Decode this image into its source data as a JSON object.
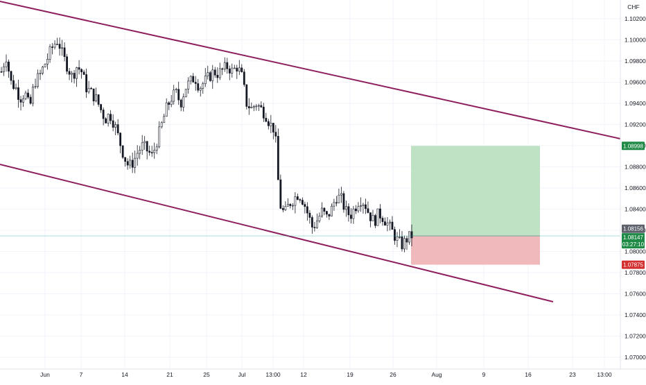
{
  "currency_label": "CHF",
  "colors": {
    "up": "#26a69a",
    "down": "#131722",
    "candle_body_down": "#131722",
    "candle_body_up": "#ffffff",
    "channel": "#8e1f5d",
    "target_zone": "#b7dfbc",
    "stop_zone": "#eeb3b5",
    "target_badge": "#1e8a45",
    "stop_badge": "#d32f2f",
    "price_badge": "#1e8a45",
    "prev_badge": "#5d606b",
    "grid": "#f0f3fa",
    "axis_text": "#131722"
  },
  "chart_data": {
    "type": "candlestick",
    "title": "",
    "xlabel": "",
    "ylabel": "",
    "ylim": [
      1.0685,
      1.103
    ],
    "y_ticks": [
      "1.10200",
      "1.10000",
      "1.09800",
      "1.09600",
      "1.09400",
      "1.09200",
      "1.09000",
      "1.08800",
      "1.08600",
      "1.08400",
      "1.08200",
      "1.08000",
      "1.07800",
      "1.07600",
      "1.07400",
      "1.07200",
      "1.07000"
    ],
    "x_ticks": [
      "Jun",
      "7",
      "14",
      "21",
      "25",
      "Jul",
      "13:00",
      "12",
      "19",
      "26",
      "Aug",
      "9",
      "16",
      "23",
      "13:00"
    ],
    "price_path": [
      [
        0,
        1.097
      ],
      [
        3,
        1.0985
      ],
      [
        6,
        1.096
      ],
      [
        9,
        1.0955
      ],
      [
        12,
        1.0945
      ],
      [
        15,
        1.095
      ],
      [
        18,
        1.0935
      ],
      [
        21,
        1.096
      ],
      [
        24,
        1.0965
      ],
      [
        27,
        1.0975
      ],
      [
        30,
        1.0985
      ],
      [
        33,
        1.0995
      ],
      [
        36,
        1.1
      ],
      [
        39,
        1.0985
      ],
      [
        42,
        1.0975
      ],
      [
        45,
        1.0965
      ],
      [
        48,
        1.0975
      ],
      [
        51,
        1.097
      ],
      [
        54,
        1.0955
      ],
      [
        57,
        1.095
      ],
      [
        60,
        1.0945
      ],
      [
        63,
        1.0935
      ],
      [
        66,
        1.0925
      ],
      [
        69,
        1.093
      ],
      [
        72,
        1.092
      ],
      [
        75,
        1.0905
      ],
      [
        78,
        1.089
      ],
      [
        81,
        1.088
      ],
      [
        84,
        1.0885
      ],
      [
        87,
        1.0895
      ],
      [
        90,
        1.09
      ],
      [
        93,
        1.0895
      ],
      [
        96,
        1.089
      ],
      [
        99,
        1.0905
      ],
      [
        102,
        1.092
      ],
      [
        105,
        1.0935
      ],
      [
        108,
        1.0945
      ],
      [
        111,
        1.095
      ],
      [
        114,
        1.094
      ],
      [
        117,
        1.0955
      ],
      [
        120,
        1.096
      ],
      [
        123,
        1.0965
      ],
      [
        126,
        1.0955
      ],
      [
        129,
        1.096
      ],
      [
        132,
        1.0965
      ],
      [
        135,
        1.097
      ],
      [
        138,
        1.0968
      ],
      [
        141,
        1.0972
      ],
      [
        144,
        1.0975
      ],
      [
        147,
        1.097
      ],
      [
        150,
        1.0975
      ],
      [
        153,
        1.0965
      ],
      [
        156,
        1.094
      ],
      [
        159,
        1.0935
      ],
      [
        162,
        1.094
      ],
      [
        165,
        1.0935
      ],
      [
        168,
        1.093
      ],
      [
        171,
        1.092
      ],
      [
        174,
        1.0915
      ],
      [
        177,
        1.0845
      ],
      [
        180,
        1.0835
      ],
      [
        183,
        1.0845
      ],
      [
        186,
        1.085
      ],
      [
        189,
        1.0855
      ],
      [
        192,
        1.0848
      ],
      [
        195,
        1.0835
      ],
      [
        198,
        1.0822
      ],
      [
        201,
        1.083
      ],
      [
        204,
        1.0838
      ],
      [
        207,
        1.0832
      ],
      [
        210,
        1.084
      ],
      [
        213,
        1.0852
      ],
      [
        216,
        1.085
      ],
      [
        219,
        1.0838
      ],
      [
        222,
        1.0834
      ],
      [
        225,
        1.0842
      ],
      [
        228,
        1.085
      ],
      [
        231,
        1.0846
      ],
      [
        234,
        1.0835
      ],
      [
        237,
        1.0828
      ],
      [
        240,
        1.0836
      ],
      [
        243,
        1.0832
      ],
      [
        246,
        1.0825
      ],
      [
        249,
        1.0818
      ],
      [
        252,
        1.081
      ],
      [
        255,
        1.0806
      ],
      [
        258,
        1.0812
      ],
      [
        261,
        1.0815
      ]
    ],
    "channel_upper": [
      [
        1.0,
        1.0
      ]
    ],
    "annotations": {
      "current_price": "1.08147",
      "countdown": "03:27:10",
      "previous_price": "1.08156",
      "target_price": "1.08998",
      "stop_price": "1.07875"
    }
  }
}
